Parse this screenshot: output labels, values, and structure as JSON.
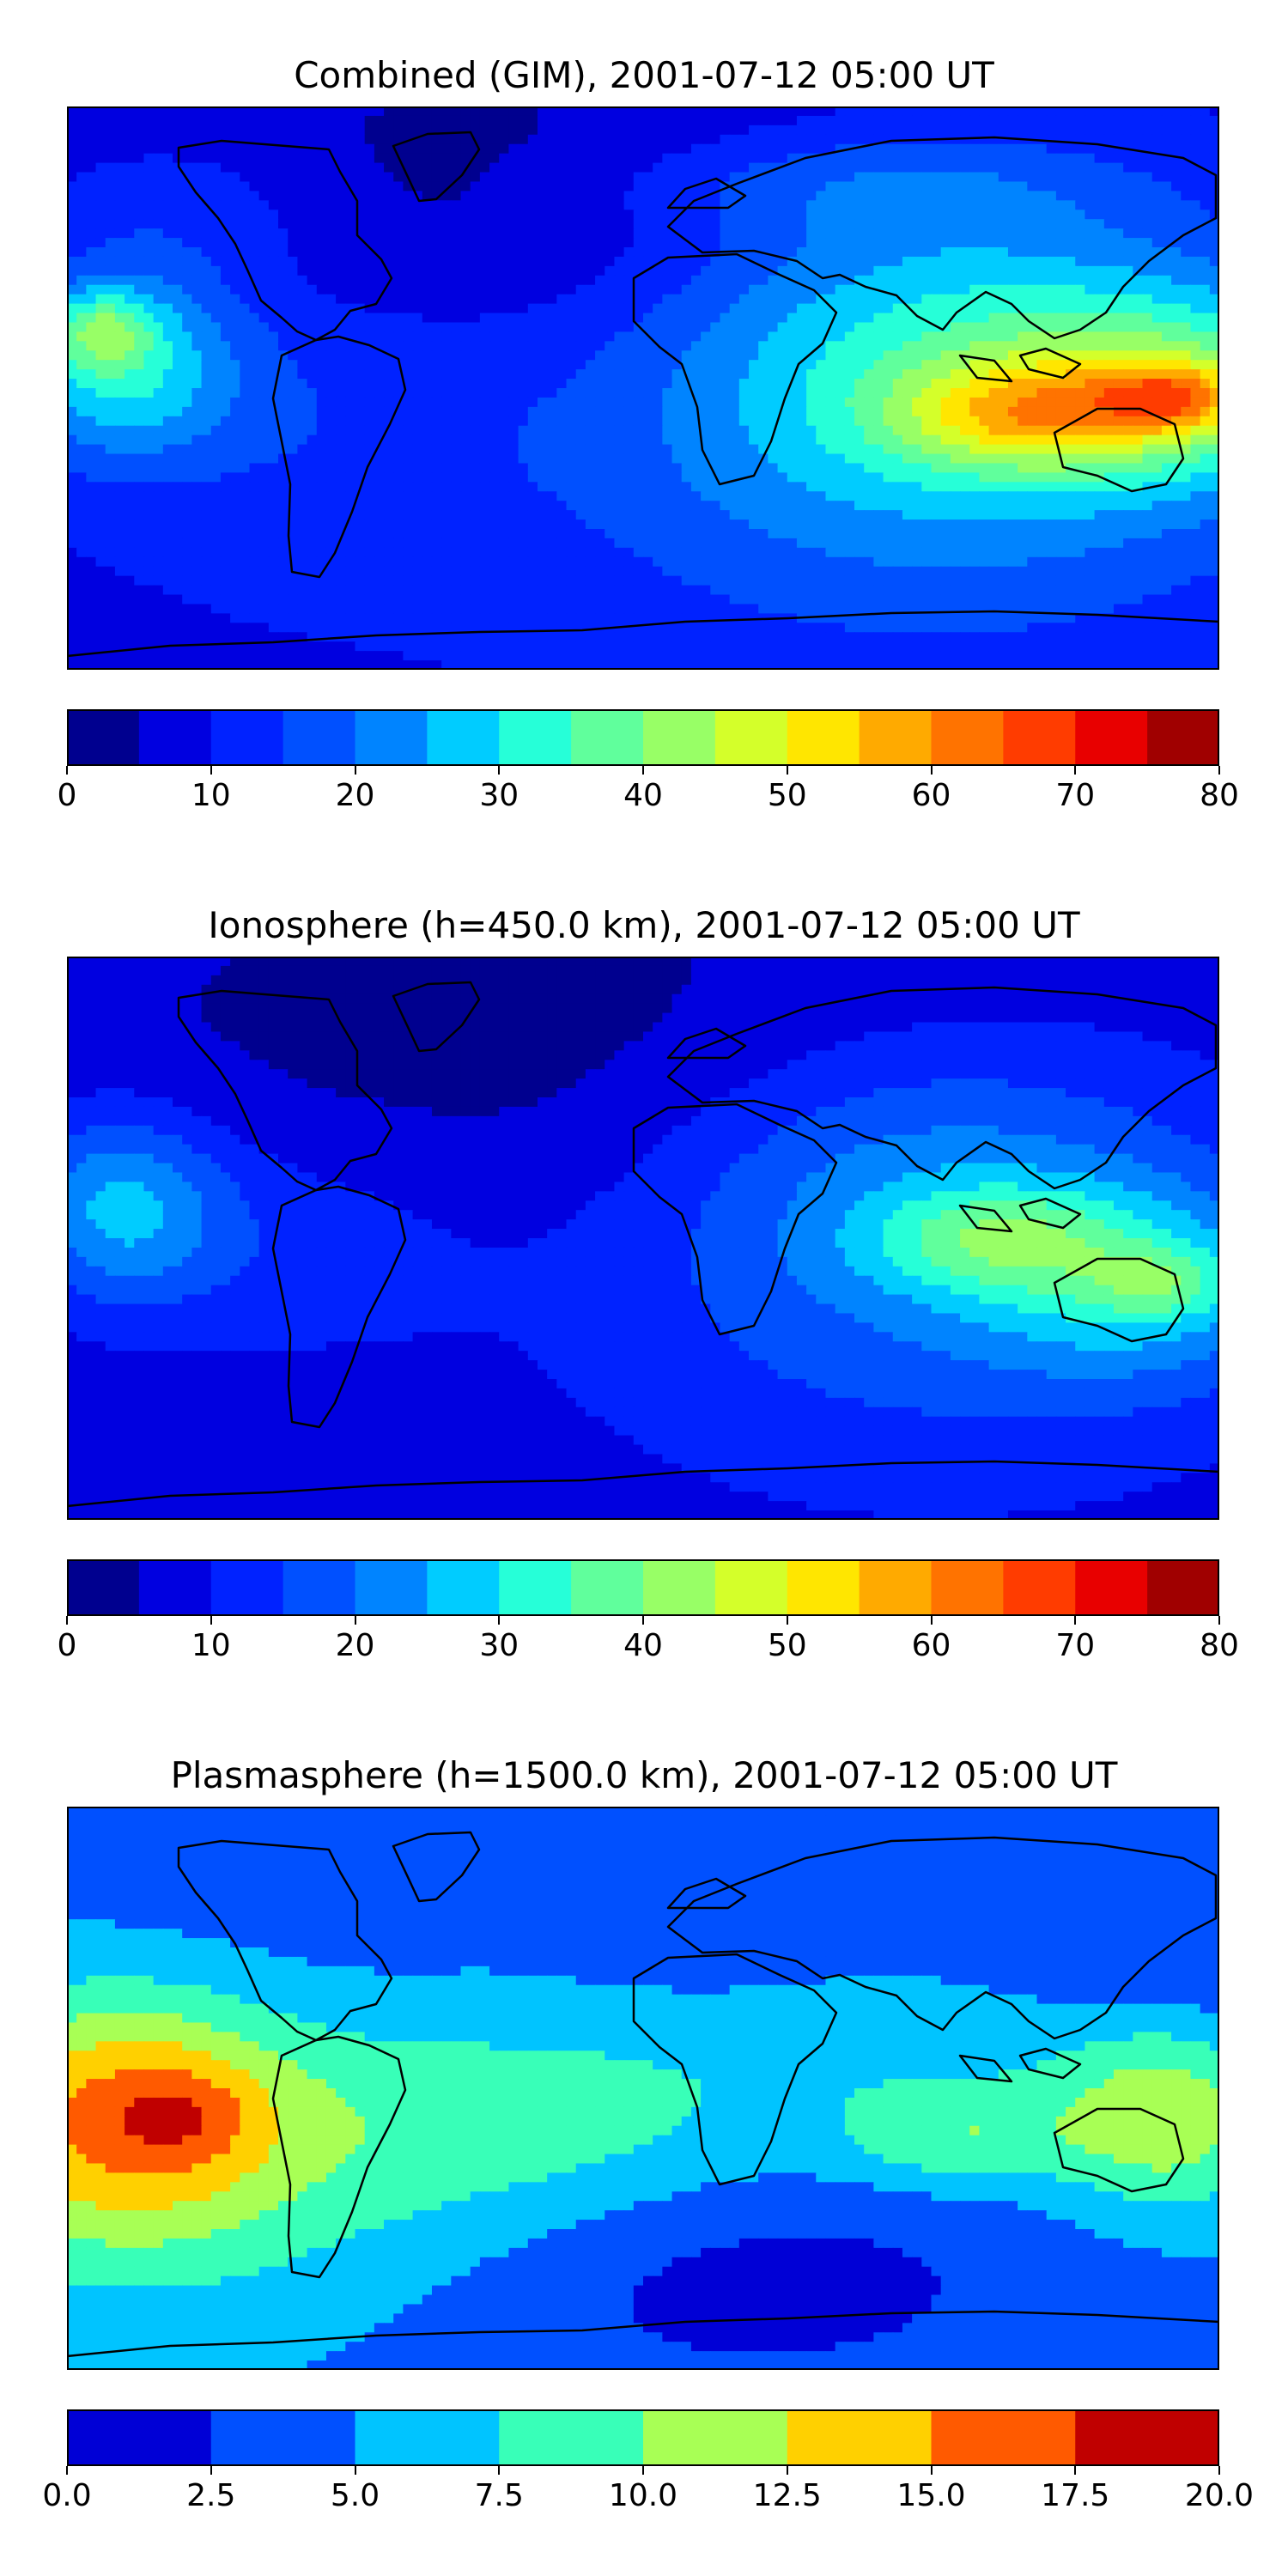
{
  "chart_data": [
    {
      "type": "heatmap",
      "title": "Combined (GIM), 2001-07-12 05:00 UT",
      "subject": "world map filled contour",
      "colorbar": {
        "levels": [
          0,
          5,
          10,
          15,
          20,
          25,
          30,
          35,
          40,
          45,
          50,
          55,
          60,
          65,
          70,
          75,
          80
        ],
        "ticks": [
          0,
          10,
          20,
          30,
          40,
          50,
          60,
          70,
          80
        ],
        "tick_labels": [
          "0",
          "10",
          "20",
          "30",
          "40",
          "50",
          "60",
          "70",
          "80"
        ],
        "colors": [
          "#00008f",
          "#0000e0",
          "#0022ff",
          "#0050ff",
          "#0084ff",
          "#00ccff",
          "#26ffd8",
          "#60ff9c",
          "#98ff66",
          "#d4ff2a",
          "#ffe600",
          "#ffaa00",
          "#ff7300",
          "#ff3c00",
          "#e80000",
          "#a00000"
        ]
      }
    },
    {
      "type": "heatmap",
      "title": "Ionosphere  (h=450.0 km), 2001-07-12 05:00 UT",
      "subject": "world map filled contour",
      "colorbar": {
        "levels": [
          0,
          5,
          10,
          15,
          20,
          25,
          30,
          35,
          40,
          45,
          50,
          55,
          60,
          65,
          70,
          75,
          80
        ],
        "ticks": [
          0,
          10,
          20,
          30,
          40,
          50,
          60,
          70,
          80
        ],
        "tick_labels": [
          "0",
          "10",
          "20",
          "30",
          "40",
          "50",
          "60",
          "70",
          "80"
        ],
        "colors": [
          "#00008f",
          "#0000e0",
          "#0022ff",
          "#0050ff",
          "#0084ff",
          "#00ccff",
          "#26ffd8",
          "#60ff9c",
          "#98ff66",
          "#d4ff2a",
          "#ffe600",
          "#ffaa00",
          "#ff7300",
          "#ff3c00",
          "#e80000",
          "#a00000"
        ]
      }
    },
    {
      "type": "heatmap",
      "title": "Plasmasphere (h=1500.0 km), 2001-07-12 05:00 UT",
      "subject": "world map filled contour",
      "colorbar": {
        "levels": [
          0,
          2.5,
          5,
          7.5,
          10,
          12.5,
          15,
          17.5,
          20
        ],
        "ticks": [
          0,
          2.5,
          5,
          7.5,
          10,
          12.5,
          15,
          17.5,
          20
        ],
        "tick_labels": [
          "0.0",
          "2.5",
          "5.0",
          "7.5",
          "10.0",
          "12.5",
          "15.0",
          "17.5",
          "20.0"
        ],
        "colors": [
          "#0000d6",
          "#0050ff",
          "#00c4ff",
          "#38ffb8",
          "#a8ff55",
          "#ffd000",
          "#ff5a00",
          "#c00000"
        ]
      }
    }
  ]
}
